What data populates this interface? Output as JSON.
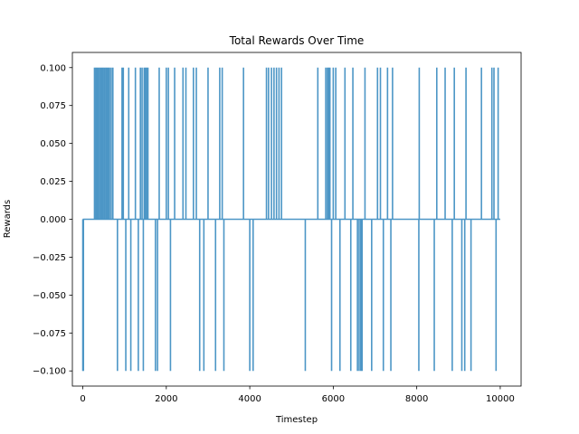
{
  "chart_data": {
    "type": "line",
    "title": "Total Rewards Over Time",
    "xlabel": "Timestep",
    "ylabel": "Rewards",
    "xlim": [
      -250,
      10500
    ],
    "ylim": [
      -0.11,
      0.11
    ],
    "x_ticks": [
      0,
      2000,
      4000,
      6000,
      8000,
      10000
    ],
    "x_tick_labels": [
      "0",
      "2000",
      "4000",
      "6000",
      "8000",
      "10000"
    ],
    "y_ticks": [
      -0.1,
      -0.075,
      -0.05,
      -0.025,
      0.0,
      0.025,
      0.05,
      0.075,
      0.1
    ],
    "y_tick_labels": [
      "−0.100",
      "−0.075",
      "−0.050",
      "−0.025",
      "0.000",
      "0.025",
      "0.050",
      "0.075",
      "0.100"
    ],
    "grid": false,
    "color": "#4c96c6",
    "x_end": 10000,
    "series": [
      {
        "spikes": [
          {
            "x": 0,
            "y": -0.1
          },
          {
            "x": 15,
            "y": -0.1
          },
          {
            "x": 280,
            "y": 0.1
          },
          {
            "x": 310,
            "y": 0.1
          },
          {
            "x": 340,
            "y": 0.1
          },
          {
            "x": 370,
            "y": 0.1
          },
          {
            "x": 400,
            "y": 0.1
          },
          {
            "x": 430,
            "y": 0.1
          },
          {
            "x": 460,
            "y": 0.1
          },
          {
            "x": 490,
            "y": 0.1
          },
          {
            "x": 520,
            "y": 0.1
          },
          {
            "x": 550,
            "y": 0.1
          },
          {
            "x": 580,
            "y": 0.1
          },
          {
            "x": 610,
            "y": 0.1
          },
          {
            "x": 640,
            "y": 0.1
          },
          {
            "x": 680,
            "y": 0.1
          },
          {
            "x": 720,
            "y": 0.1
          },
          {
            "x": 830,
            "y": -0.1
          },
          {
            "x": 940,
            "y": 0.1
          },
          {
            "x": 970,
            "y": 0.1
          },
          {
            "x": 1030,
            "y": -0.1
          },
          {
            "x": 1100,
            "y": 0.1
          },
          {
            "x": 1150,
            "y": -0.1
          },
          {
            "x": 1260,
            "y": 0.1
          },
          {
            "x": 1330,
            "y": -0.1
          },
          {
            "x": 1380,
            "y": 0.1
          },
          {
            "x": 1420,
            "y": 0.1
          },
          {
            "x": 1450,
            "y": -0.1
          },
          {
            "x": 1470,
            "y": 0.1
          },
          {
            "x": 1500,
            "y": 0.1
          },
          {
            "x": 1530,
            "y": 0.1
          },
          {
            "x": 1560,
            "y": 0.1
          },
          {
            "x": 1740,
            "y": -0.1
          },
          {
            "x": 1790,
            "y": -0.1
          },
          {
            "x": 1830,
            "y": 0.1
          },
          {
            "x": 2000,
            "y": 0.1
          },
          {
            "x": 2050,
            "y": 0.1
          },
          {
            "x": 2100,
            "y": -0.1
          },
          {
            "x": 2200,
            "y": 0.1
          },
          {
            "x": 2400,
            "y": 0.1
          },
          {
            "x": 2470,
            "y": 0.1
          },
          {
            "x": 2650,
            "y": 0.1
          },
          {
            "x": 2720,
            "y": 0.1
          },
          {
            "x": 2800,
            "y": -0.1
          },
          {
            "x": 2900,
            "y": -0.1
          },
          {
            "x": 3000,
            "y": 0.1
          },
          {
            "x": 3180,
            "y": -0.1
          },
          {
            "x": 3280,
            "y": 0.1
          },
          {
            "x": 3340,
            "y": 0.1
          },
          {
            "x": 3380,
            "y": -0.1
          },
          {
            "x": 3850,
            "y": 0.1
          },
          {
            "x": 4000,
            "y": -0.1
          },
          {
            "x": 4080,
            "y": -0.1
          },
          {
            "x": 4400,
            "y": 0.1
          },
          {
            "x": 4450,
            "y": 0.1
          },
          {
            "x": 4520,
            "y": 0.1
          },
          {
            "x": 4580,
            "y": 0.1
          },
          {
            "x": 4640,
            "y": 0.1
          },
          {
            "x": 4700,
            "y": 0.1
          },
          {
            "x": 4760,
            "y": 0.1
          },
          {
            "x": 5330,
            "y": -0.1
          },
          {
            "x": 5630,
            "y": 0.1
          },
          {
            "x": 5820,
            "y": 0.1
          },
          {
            "x": 5860,
            "y": 0.1
          },
          {
            "x": 5890,
            "y": 0.1
          },
          {
            "x": 5920,
            "y": 0.1
          },
          {
            "x": 5960,
            "y": -0.1
          },
          {
            "x": 6000,
            "y": 0.1
          },
          {
            "x": 6060,
            "y": 0.1
          },
          {
            "x": 6160,
            "y": -0.1
          },
          {
            "x": 6280,
            "y": 0.1
          },
          {
            "x": 6420,
            "y": -0.1
          },
          {
            "x": 6470,
            "y": 0.1
          },
          {
            "x": 6580,
            "y": -0.1
          },
          {
            "x": 6620,
            "y": -0.1
          },
          {
            "x": 6660,
            "y": -0.1
          },
          {
            "x": 6690,
            "y": -0.1
          },
          {
            "x": 6760,
            "y": 0.1
          },
          {
            "x": 6920,
            "y": -0.1
          },
          {
            "x": 7060,
            "y": 0.1
          },
          {
            "x": 7130,
            "y": 0.1
          },
          {
            "x": 7200,
            "y": -0.1
          },
          {
            "x": 7300,
            "y": 0.1
          },
          {
            "x": 7380,
            "y": -0.1
          },
          {
            "x": 7420,
            "y": 0.1
          },
          {
            "x": 8050,
            "y": -0.1
          },
          {
            "x": 8060,
            "y": 0.1
          },
          {
            "x": 8420,
            "y": -0.1
          },
          {
            "x": 8480,
            "y": 0.1
          },
          {
            "x": 8680,
            "y": 0.1
          },
          {
            "x": 8850,
            "y": -0.1
          },
          {
            "x": 8900,
            "y": 0.1
          },
          {
            "x": 9080,
            "y": -0.1
          },
          {
            "x": 9150,
            "y": -0.1
          },
          {
            "x": 9180,
            "y": 0.1
          },
          {
            "x": 9300,
            "y": -0.1
          },
          {
            "x": 9550,
            "y": 0.1
          },
          {
            "x": 9800,
            "y": 0.1
          },
          {
            "x": 9850,
            "y": 0.1
          },
          {
            "x": 9900,
            "y": -0.1
          },
          {
            "x": 9950,
            "y": 0.1
          }
        ]
      }
    ]
  }
}
